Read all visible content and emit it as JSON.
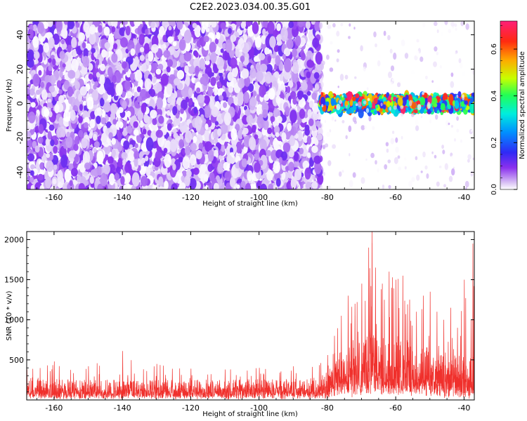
{
  "title": "C2E2.2023.034.00.35.G01",
  "colors": {
    "snr_line": "#f0302c",
    "colormap": [
      "#ffffff",
      "#c6a3f2",
      "#8a30ee",
      "#5a00e6",
      "#1e2dff",
      "#00c7ff",
      "#00ff9a",
      "#b4ff00",
      "#ffd400",
      "#ff3a00",
      "#ff1e78"
    ]
  },
  "chart_data": [
    {
      "type": "heatmap",
      "xlabel": "Height of straight line (km)",
      "ylabel": "Frequency (Hz)",
      "xlim": [
        -168,
        -37
      ],
      "ylim": [
        -50,
        48
      ],
      "xticks": [
        -160,
        -140,
        -120,
        -100,
        -80,
        -60,
        -40
      ],
      "yticks": [
        -40,
        -20,
        0,
        20,
        40
      ],
      "colorbar": {
        "label": "Normalized spectral amplitude",
        "range": [
          0,
          0.72
        ],
        "ticks": [
          0.0,
          0.2,
          0.4,
          0.6
        ],
        "tick_labels": [
          "0.0",
          "0.2",
          "0.4",
          "0.6"
        ]
      },
      "regions": [
        {
          "x_range": [
            -168,
            -82
          ],
          "y_range": [
            -50,
            48
          ],
          "pattern": "broadband noise",
          "amplitude_range": [
            0.0,
            0.12
          ]
        },
        {
          "x_range": [
            -82,
            -37
          ],
          "y_range": [
            -6,
            6
          ],
          "pattern": "narrowband signal near 0 Hz",
          "amplitude_range": [
            0.15,
            0.72
          ]
        },
        {
          "x_range": [
            -82,
            -37
          ],
          "y_range": [
            -50,
            48
          ],
          "pattern": "sparse weak noise",
          "amplitude_range": [
            0.0,
            0.05
          ]
        }
      ]
    },
    {
      "type": "line",
      "xlabel": "Height of straight line (km)",
      "ylabel": "SNR (10 * v/v)",
      "xlim": [
        -168,
        -37
      ],
      "ylim": [
        0,
        2100
      ],
      "xticks": [
        -160,
        -140,
        -120,
        -100,
        -80,
        -60,
        -40
      ],
      "yticks": [
        500,
        1000,
        1500,
        2000
      ],
      "series": [
        {
          "color": "#f0302c",
          "x": [
            -168,
            -160,
            -150,
            -140,
            -130,
            -120,
            -110,
            -100,
            -90,
            -82,
            -80,
            -78,
            -76,
            -74,
            -72,
            -70,
            -68,
            -67,
            -66,
            -64,
            -62,
            -60,
            -58,
            -56,
            -54,
            -52,
            -50,
            -48,
            -46,
            -44,
            -42,
            -40,
            -38,
            -37.5
          ],
          "min": [
            0,
            0,
            0,
            0,
            0,
            0,
            0,
            0,
            0,
            0,
            0,
            0,
            0,
            0,
            0,
            0,
            0,
            0,
            0,
            0,
            0,
            0,
            0,
            0,
            0,
            0,
            0,
            0,
            0,
            0,
            0,
            0,
            0,
            0
          ],
          "typ": [
            230,
            210,
            200,
            210,
            200,
            205,
            200,
            210,
            210,
            230,
            300,
            380,
            500,
            560,
            620,
            650,
            700,
            720,
            680,
            620,
            600,
            640,
            660,
            580,
            520,
            560,
            560,
            500,
            480,
            460,
            450,
            430,
            420,
            430
          ],
          "max": [
            380,
            480,
            420,
            610,
            450,
            390,
            380,
            400,
            420,
            460,
            560,
            800,
            1050,
            1300,
            1200,
            1450,
            1900,
            2100,
            1650,
            1450,
            1600,
            1500,
            1550,
            1250,
            1100,
            1300,
            1350,
            1100,
            1000,
            1150,
            900,
            1500,
            1000,
            1950
          ]
        }
      ]
    }
  ]
}
